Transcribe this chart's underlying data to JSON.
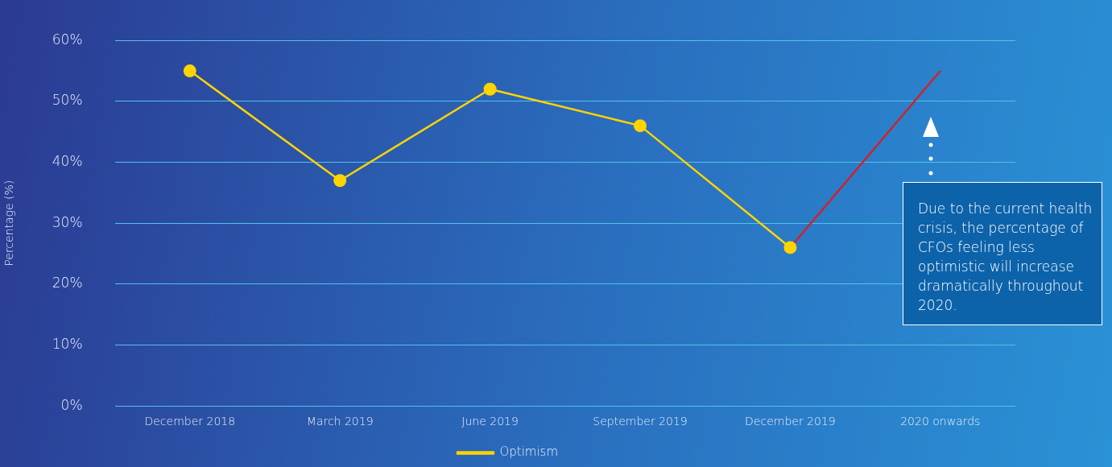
{
  "chart_data": {
    "type": "line",
    "ylabel": "Percentage (%)",
    "categories": [
      "December 2018",
      "March 2019",
      "June 2019",
      "September 2019",
      "December 2019",
      "2020 onwards"
    ],
    "series": [
      {
        "name": "Optimism",
        "color": "#ffd400",
        "marker": "circle",
        "values": [
          55,
          37,
          52,
          46,
          26,
          null
        ]
      },
      {
        "color": "#d0222a",
        "marker": "none",
        "values": [
          null,
          null,
          null,
          null,
          26,
          55
        ]
      }
    ],
    "ylim": [
      0,
      60
    ],
    "yticks": [
      {
        "value": 0,
        "label": "0%"
      },
      {
        "value": 10,
        "label": "10%"
      },
      {
        "value": 20,
        "label": "20%"
      },
      {
        "value": 30,
        "label": "30%"
      },
      {
        "value": 40,
        "label": "40%"
      },
      {
        "value": 50,
        "label": "50%"
      },
      {
        "value": 60,
        "label": "60%"
      }
    ],
    "grid": "y",
    "legend": "bottom",
    "annotations": [
      "Due to the current health crisis, the percentage of CFOs feeling less optimistic will increase dramatically throughout 2020."
    ]
  }
}
